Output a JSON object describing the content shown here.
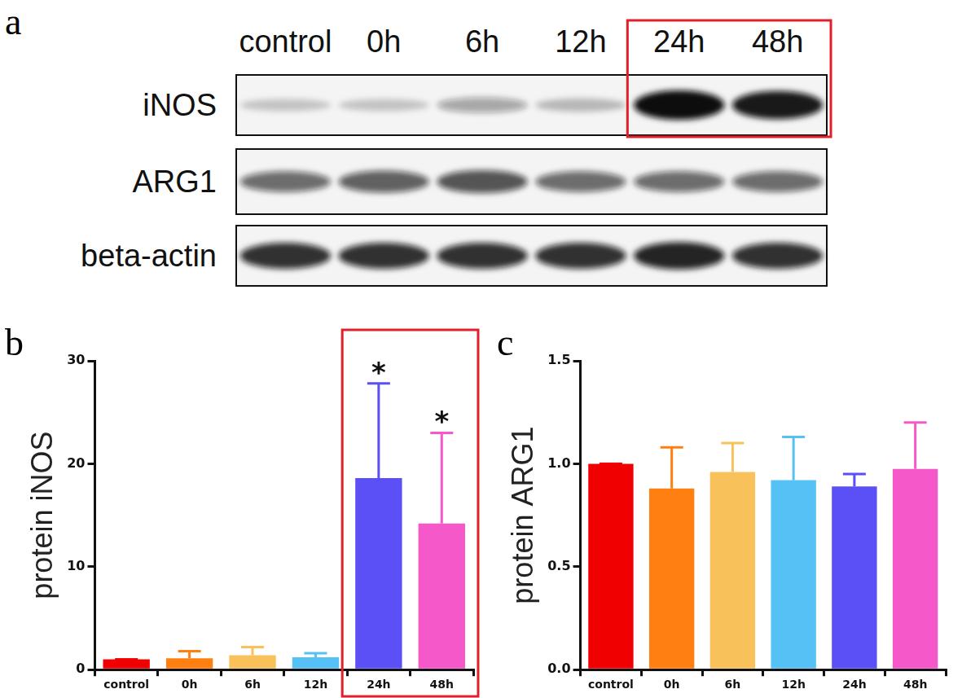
{
  "blot": {
    "panel_label": "a",
    "lanes": [
      "control",
      "0h",
      "6h",
      "12h",
      "24h",
      "48h"
    ],
    "rows": [
      {
        "name": "iNOS",
        "bands": [
          0.2,
          0.2,
          0.35,
          0.25,
          1.0,
          0.95
        ]
      },
      {
        "name": "ARG1",
        "bands": [
          0.6,
          0.65,
          0.7,
          0.6,
          0.6,
          0.6
        ]
      },
      {
        "name": "beta-actin",
        "bands": [
          0.85,
          0.85,
          0.85,
          0.85,
          0.9,
          0.85
        ]
      }
    ]
  },
  "chart_data": [
    {
      "panel_label": "b",
      "type": "bar",
      "y_label": "protein iNOS",
      "categories": [
        "control",
        "0h",
        "6h",
        "12h",
        "24h",
        "48h"
      ],
      "values": [
        1.0,
        1.1,
        1.4,
        1.2,
        18.6,
        14.2
      ],
      "errors": [
        0,
        0.7,
        0.8,
        0.4,
        9.2,
        8.8
      ],
      "colors": [
        "#f00000",
        "#ff7f10",
        "#f9c15a",
        "#56c1f5",
        "#5a50f5",
        "#f558c8"
      ],
      "ylim": [
        0,
        30
      ],
      "yticks": [
        0,
        10,
        20,
        30
      ],
      "grid": false,
      "annotations": [
        {
          "category": "24h",
          "text": "*"
        },
        {
          "category": "48h",
          "text": "*"
        }
      ]
    },
    {
      "panel_label": "c",
      "type": "bar",
      "y_label": "protein ARG1",
      "categories": [
        "control",
        "0h",
        "6h",
        "12h",
        "24h",
        "48h"
      ],
      "values": [
        1.0,
        0.88,
        0.96,
        0.92,
        0.89,
        0.975
      ],
      "errors": [
        0,
        0.2,
        0.14,
        0.21,
        0.06,
        0.225
      ],
      "colors": [
        "#f00000",
        "#ff7f10",
        "#f9c15a",
        "#56c1f5",
        "#5a50f5",
        "#f558c8"
      ],
      "ylim": [
        0,
        1.5
      ],
      "yticks": [
        {
          "value": 0,
          "label": "0.0"
        },
        {
          "value": 0.5,
          "label": "0.5"
        },
        {
          "value": 1,
          "label": "1.0"
        },
        {
          "value": 1.5,
          "label": "1.5"
        }
      ],
      "grid": false
    }
  ]
}
